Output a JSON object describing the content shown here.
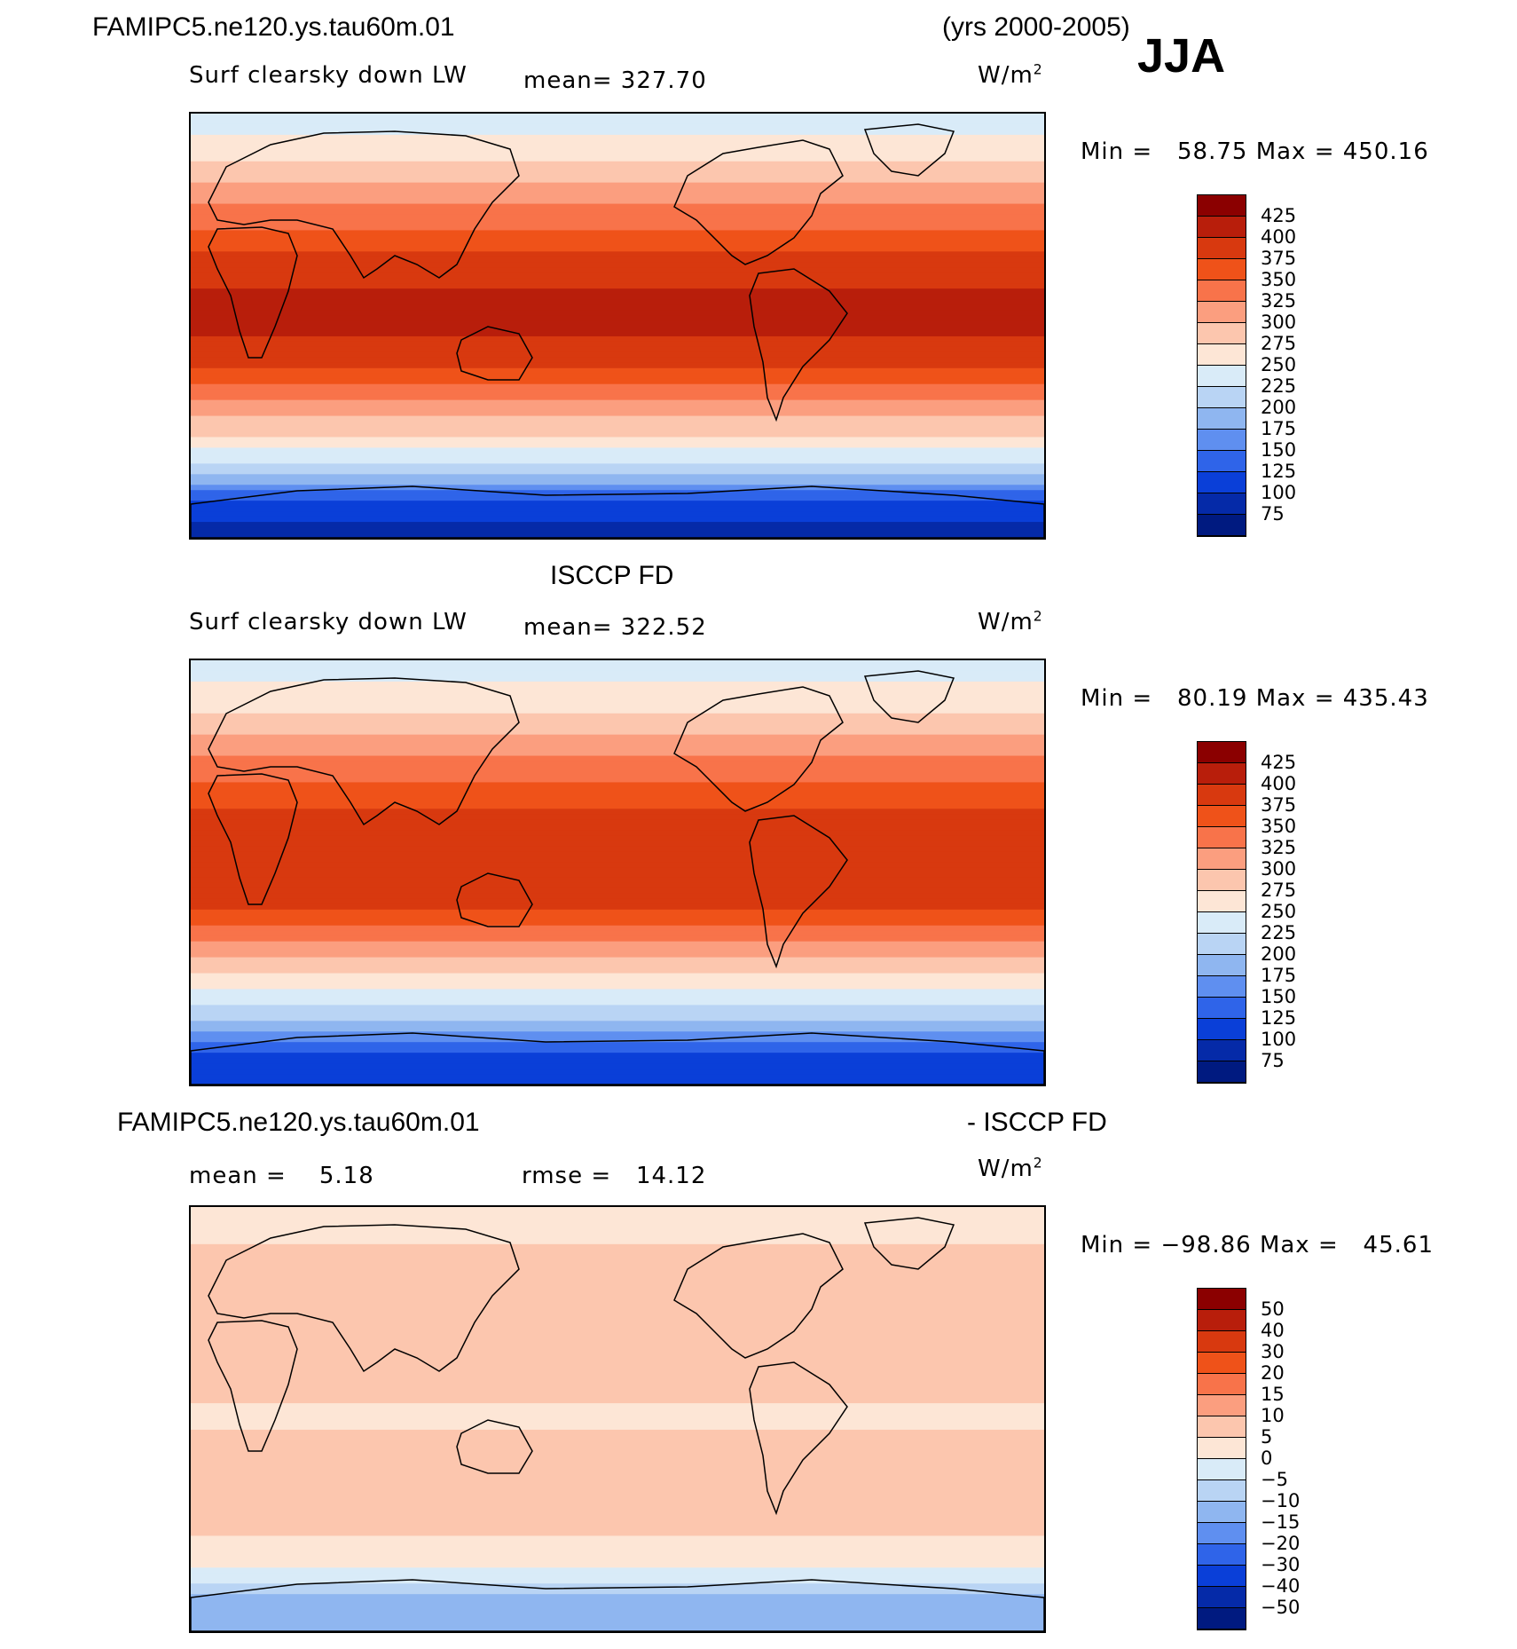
{
  "header": {
    "case_name": "FAMIPC5.ne120.ys.tau60m.01",
    "years": "(yrs 2000-2005)",
    "season": "JJA"
  },
  "panels": [
    {
      "id": "model",
      "title": "",
      "variable": "Surf clearsky down LW",
      "mean_text": "mean= 327.70",
      "units": "W/m",
      "units_sup": "2",
      "min_label": "Min =",
      "min_value": "58.75",
      "max_label": "Max =",
      "max_value": "450.16"
    },
    {
      "id": "obs",
      "title": "ISCCP FD",
      "variable": "Surf clearsky down LW",
      "mean_text": "mean= 322.52",
      "units": "W/m",
      "units_sup": "2",
      "min_label": "Min =",
      "min_value": "80.19",
      "max_label": "Max =",
      "max_value": "435.43"
    },
    {
      "id": "diff",
      "title_left": "FAMIPC5.ne120.ys.tau60m.01",
      "title_right": "- ISCCP FD",
      "mean_label": "mean =",
      "mean_value": "5.18",
      "rmse_label": "rmse =",
      "rmse_value": "14.12",
      "units": "W/m",
      "units_sup": "2",
      "min_label": "Min =",
      "min_value": "−98.86",
      "max_label": "Max =",
      "max_value": "45.61"
    }
  ],
  "chart_data": [
    {
      "type": "heatmap",
      "title": "FAMIPC5.ne120.ys.tau60m.01 Surf clearsky down LW (JJA)",
      "units": "W/m2",
      "mean": 327.7,
      "min": 58.75,
      "max": 450.16,
      "colorbar_levels": [
        425,
        400,
        375,
        350,
        325,
        300,
        275,
        250,
        225,
        200,
        175,
        150,
        125,
        100,
        75
      ],
      "colorbar_colors": [
        "#8b0000",
        "#b81e0b",
        "#d8390f",
        "#ef5219",
        "#f8734a",
        "#fb9e7f",
        "#fcc6ae",
        "#fde6d6",
        "#d9ebf8",
        "#b9d4f4",
        "#8fb6f0",
        "#5f8ff0",
        "#2f64e9",
        "#0a3fd8",
        "#052aa8",
        "#001a80"
      ],
      "zonal_profile": {
        "latitudes": [
          90,
          75,
          60,
          45,
          30,
          15,
          0,
          -15,
          -30,
          -45,
          -60,
          -75,
          -90
        ],
        "values": [
          230,
          265,
          300,
          340,
          380,
          400,
          405,
          385,
          330,
          280,
          220,
          120,
          80
        ]
      }
    },
    {
      "type": "heatmap",
      "title": "ISCCP FD Surf clearsky down LW (JJA)",
      "units": "W/m2",
      "mean": 322.52,
      "min": 80.19,
      "max": 435.43,
      "colorbar_levels": [
        425,
        400,
        375,
        350,
        325,
        300,
        275,
        250,
        225,
        200,
        175,
        150,
        125,
        100,
        75
      ],
      "colorbar_colors": [
        "#8b0000",
        "#b81e0b",
        "#d8390f",
        "#ef5219",
        "#f8734a",
        "#fb9e7f",
        "#fcc6ae",
        "#fde6d6",
        "#d9ebf8",
        "#b9d4f4",
        "#8fb6f0",
        "#5f8ff0",
        "#2f64e9",
        "#0a3fd8",
        "#052aa8",
        "#001a80"
      ],
      "zonal_profile": {
        "latitudes": [
          90,
          75,
          60,
          45,
          30,
          15,
          0,
          -15,
          -30,
          -45,
          -60,
          -75,
          -90
        ],
        "values": [
          235,
          260,
          295,
          335,
          370,
          390,
          395,
          375,
          320,
          270,
          215,
          130,
          100
        ]
      }
    },
    {
      "type": "heatmap",
      "title": "FAMIPC5.ne120.ys.tau60m.01 - ISCCP FD",
      "units": "W/m2",
      "mean": 5.18,
      "rmse": 14.12,
      "min": -98.86,
      "max": 45.61,
      "colorbar_levels": [
        50,
        40,
        30,
        20,
        15,
        10,
        5,
        0,
        -5,
        -10,
        -15,
        -20,
        -30,
        -40,
        -50
      ],
      "colorbar_colors": [
        "#8b0000",
        "#b81e0b",
        "#d8390f",
        "#ef5219",
        "#f8734a",
        "#fb9e7f",
        "#fcc6ae",
        "#fde6d6",
        "#d9ebf8",
        "#b9d4f4",
        "#8fb6f0",
        "#5f8ff0",
        "#2f64e9",
        "#0a3fd8",
        "#052aa8",
        "#001a80"
      ],
      "zonal_profile": {
        "latitudes": [
          90,
          75,
          60,
          45,
          30,
          15,
          0,
          -15,
          -30,
          -45,
          -60,
          -75,
          -90
        ],
        "values": [
          2,
          5,
          8,
          10,
          8,
          6,
          4,
          8,
          10,
          6,
          2,
          -10,
          -15
        ]
      }
    }
  ]
}
